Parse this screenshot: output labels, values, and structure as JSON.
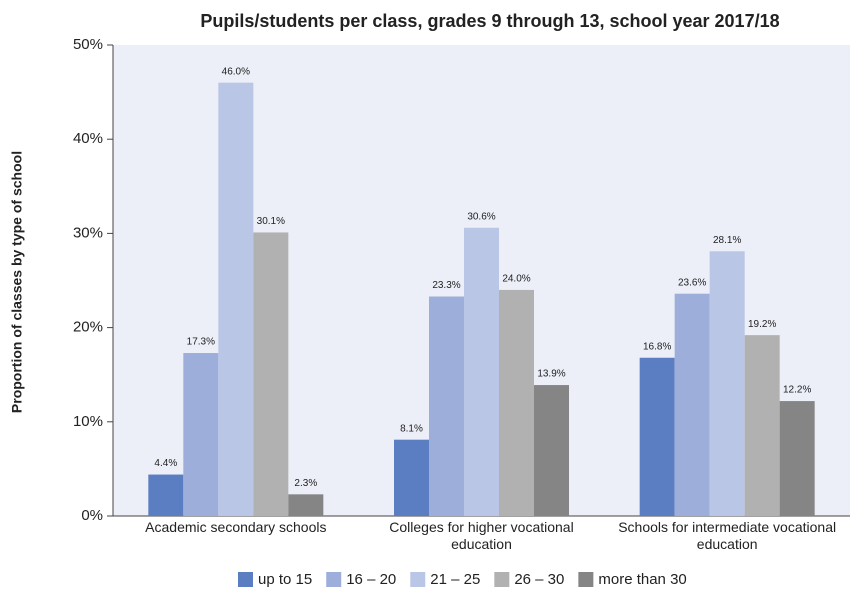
{
  "chart_data": {
    "type": "bar",
    "title": "Pupils/students per class, grades 9 through 13, school year 2017/18",
    "y_label": "Proportion of classes by type of school",
    "categories": [
      "Academic secondary schools",
      "Colleges for higher vocational education",
      "Schools for intermediate vocational education"
    ],
    "series": [
      {
        "name": "up to 15",
        "color": "#5b7dc1",
        "values": [
          4.4,
          8.1,
          16.8
        ],
        "value_labels": [
          "4.4%",
          "8.1%",
          "16.8%"
        ]
      },
      {
        "name": "16 – 20",
        "color": "#9eaedb",
        "values": [
          17.3,
          23.3,
          23.6
        ],
        "value_labels": [
          "17.3%",
          "23.3%",
          "23.6%"
        ]
      },
      {
        "name": "21 – 25",
        "color": "#bac6e6",
        "values": [
          46.0,
          30.6,
          28.1
        ],
        "value_labels": [
          "46.0%",
          "30.6%",
          "28.1%"
        ]
      },
      {
        "name": "26 – 30",
        "color": "#b1b1b1",
        "values": [
          30.1,
          24.0,
          19.2
        ],
        "value_labels": [
          "30.1%",
          "24.0%",
          "19.2%"
        ]
      },
      {
        "name": "more than 30",
        "color": "#858585",
        "values": [
          2.3,
          13.9,
          12.2
        ],
        "value_labels": [
          "2.3%",
          "13.9%",
          "12.2%"
        ]
      }
    ],
    "ylim": [
      0,
      50
    ],
    "yticks": [
      {
        "value": 0,
        "label": "0%"
      },
      {
        "value": 10,
        "label": "10%"
      },
      {
        "value": 20,
        "label": "20%"
      },
      {
        "value": 30,
        "label": "30%"
      },
      {
        "value": 40,
        "label": "40%"
      },
      {
        "value": 50,
        "label": "50%"
      }
    ],
    "background": "#eceef8",
    "legend": "bottom"
  }
}
